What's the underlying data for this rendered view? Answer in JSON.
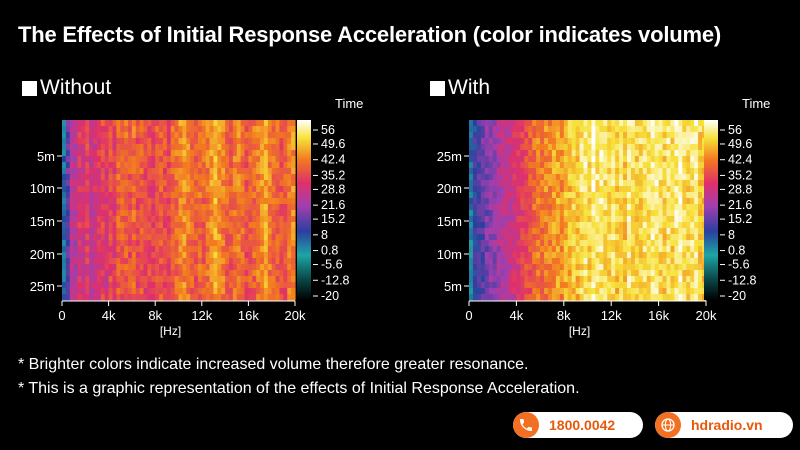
{
  "title": "The Effects of Initial Response Acceleration (color indicates volume)",
  "chart_data": [
    {
      "type": "heatmap",
      "panel_label": "Without",
      "x_ticks": [
        "0",
        "4k",
        "8k",
        "12k",
        "16k",
        "20k"
      ],
      "x_unit": "[Hz]",
      "x_range": [
        0,
        20000
      ],
      "y_ticks": [
        "5m",
        "10m",
        "15m",
        "20m",
        "25m"
      ],
      "y_range": [
        3,
        29
      ],
      "colorbar_title": "Time",
      "colorbar_ticks": [
        "56",
        "49.6",
        "42.4",
        "35.2",
        "28.8",
        "21.6",
        "15.2",
        "8",
        "0.8",
        "-5.6",
        "-12.8",
        "-20"
      ],
      "colorbar_range": [
        -20,
        56
      ],
      "column_intensity": [
        5,
        14,
        24,
        24,
        30,
        28,
        32,
        26,
        28,
        30,
        33,
        29,
        34,
        31,
        37,
        36,
        37,
        35,
        38,
        34,
        36,
        33,
        34,
        32,
        35,
        36,
        34,
        33,
        37,
        38,
        41,
        42,
        40,
        38,
        36,
        38,
        37,
        39,
        42,
        45,
        43,
        40,
        37,
        36,
        39,
        40,
        38,
        35,
        37,
        38,
        40,
        42,
        44,
        40,
        38,
        37,
        35,
        36,
        40,
        41
      ]
    },
    {
      "type": "heatmap",
      "panel_label": "With",
      "x_ticks": [
        "0",
        "4k",
        "8k",
        "12k",
        "16k",
        "20k"
      ],
      "x_unit": "[Hz]",
      "x_range": [
        0,
        20000
      ],
      "y_ticks": [
        "25m",
        "20m",
        "15m",
        "10m",
        "5m"
      ],
      "y_range": [
        3,
        29
      ],
      "colorbar_title": "Time",
      "colorbar_ticks": [
        "56",
        "49.6",
        "42.4",
        "35.2",
        "28.8",
        "21.6",
        "15.2",
        "8",
        "0.8",
        "-5.6",
        "-12.8",
        "-20"
      ],
      "colorbar_range": [
        -20,
        56
      ],
      "column_intensity": [
        5,
        10,
        12,
        14,
        17,
        19,
        20,
        22,
        24,
        25,
        26,
        28,
        30,
        32,
        34,
        36,
        38,
        40,
        39,
        41,
        40,
        43,
        44,
        42,
        45,
        46,
        48,
        47,
        50,
        52,
        49,
        53,
        51,
        52,
        50,
        49,
        51,
        48,
        50,
        47,
        52,
        50,
        48,
        49,
        51,
        50,
        52,
        53,
        50,
        48,
        51,
        49,
        52,
        54,
        50,
        49,
        51,
        52,
        48,
        47
      ]
    }
  ],
  "notes": [
    "* Brighter colors indicate increased volume therefore greater resonance.",
    "* This is a graphic representation of the effects of Initial Response Acceleration."
  ],
  "contacts": {
    "phone": "1800.0042",
    "website": "hdradio.vn"
  },
  "colors": {
    "accent": "#f36f21",
    "background": "#000000"
  }
}
